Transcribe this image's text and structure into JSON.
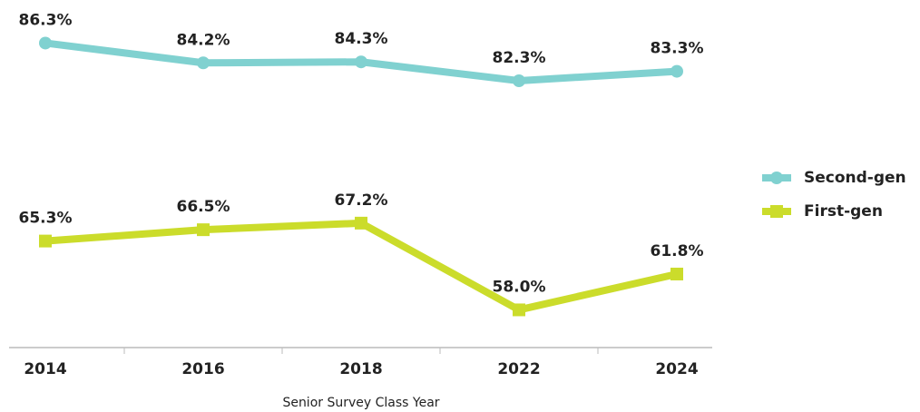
{
  "chart_data": {
    "type": "line",
    "x_label": "Senior Survey Class Year",
    "categories": [
      "2014",
      "2016",
      "2018",
      "2022",
      "2024"
    ],
    "series": [
      {
        "name": "Second-gen",
        "color": "#80d1d0",
        "marker": "circle",
        "values": [
          86.3,
          84.2,
          84.3,
          82.3,
          83.3
        ],
        "value_labels": [
          "86.3%",
          "84.2%",
          "84.3%",
          "82.3%",
          "83.3%"
        ]
      },
      {
        "name": "First-gen",
        "color": "#cbdc2b",
        "marker": "square",
        "values": [
          65.3,
          66.5,
          67.2,
          58.0,
          61.8
        ],
        "value_labels": [
          "65.3%",
          "66.5%",
          "67.2%",
          "58.0%",
          "61.8%"
        ]
      }
    ],
    "ylim": [
      54,
      90
    ],
    "legend": "right"
  }
}
